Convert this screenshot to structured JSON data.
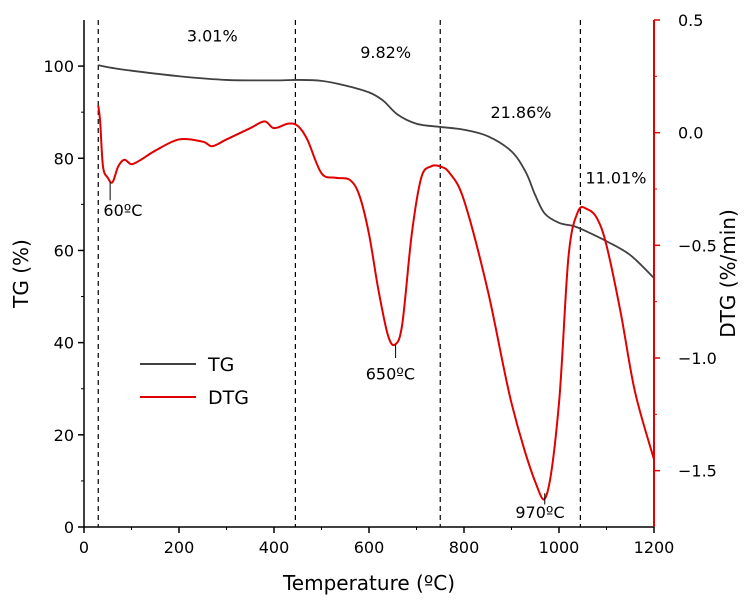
{
  "chart_data": {
    "type": "line",
    "title": "",
    "xlabel": "Temperature (ºC)",
    "ylabel_left": "TG (%)",
    "ylabel_right": "DTG (%/min)",
    "xlim": [
      0,
      1200
    ],
    "ylim_left": [
      0,
      110
    ],
    "ylim_right": [
      -1.75,
      0.5
    ],
    "x_ticks": [
      0,
      200,
      400,
      600,
      800,
      1000,
      1200
    ],
    "x_tick_labels": [
      "0",
      "200",
      "400",
      "600",
      "800",
      "1000",
      "1200"
    ],
    "y_left_ticks": [
      0,
      20,
      40,
      60,
      80,
      100
    ],
    "y_left_tick_labels": [
      "0",
      "20",
      "40",
      "60",
      "80",
      "100"
    ],
    "y_right_ticks": [
      0.5,
      0.0,
      -0.5,
      -1.0,
      -1.5
    ],
    "y_right_tick_labels": [
      "0.5",
      "0.0",
      "−0.5",
      "−1.0",
      "−1.5"
    ],
    "grid": false,
    "legend_position": "bottom-left",
    "colors": {
      "TG": "#404040",
      "DTG": "#e00000",
      "right_axis": "#e00000",
      "text": "#000000"
    },
    "series": [
      {
        "name": "TG",
        "axis": "left",
        "x": [
          30,
          60,
          100,
          200,
          300,
          400,
          450,
          500,
          550,
          600,
          630,
          660,
          700,
          750,
          800,
          850,
          900,
          930,
          950,
          970,
          1000,
          1030,
          1050,
          1100,
          1150,
          1200
        ],
        "y": [
          100.2,
          99.6,
          99.0,
          97.8,
          97.0,
          96.9,
          97.0,
          96.8,
          95.8,
          94.3,
          92.5,
          89.5,
          87.5,
          86.8,
          86.2,
          84.8,
          81.5,
          77.0,
          72.0,
          68.0,
          66.0,
          65.3,
          64.5,
          62.0,
          59.0,
          54.0
        ]
      },
      {
        "name": "DTG",
        "axis": "right",
        "x": [
          30,
          34,
          40,
          50,
          60,
          72,
          85,
          100,
          120,
          150,
          200,
          250,
          270,
          300,
          350,
          380,
          400,
          430,
          450,
          470,
          500,
          530,
          560,
          580,
          600,
          620,
          640,
          655,
          670,
          690,
          710,
          730,
          750,
          770,
          800,
          850,
          900,
          950,
          975,
          1000,
          1020,
          1040,
          1060,
          1080,
          1100,
          1130,
          1160,
          1200
        ],
        "y": [
          0.12,
          0.05,
          -0.15,
          -0.2,
          -0.22,
          -0.15,
          -0.12,
          -0.14,
          -0.12,
          -0.08,
          -0.03,
          -0.04,
          -0.06,
          -0.03,
          0.02,
          0.05,
          0.02,
          0.04,
          0.03,
          -0.03,
          -0.18,
          -0.2,
          -0.21,
          -0.28,
          -0.45,
          -0.7,
          -0.9,
          -0.94,
          -0.85,
          -0.45,
          -0.2,
          -0.15,
          -0.15,
          -0.18,
          -0.3,
          -0.7,
          -1.2,
          -1.55,
          -1.6,
          -1.2,
          -0.55,
          -0.35,
          -0.34,
          -0.38,
          -0.5,
          -0.8,
          -1.15,
          -1.45
        ]
      }
    ],
    "vertical_lines_x": [
      30,
      445,
      750,
      1045
    ],
    "annotations": [
      {
        "text": "3.01%",
        "x": 270,
        "y": 105.3
      },
      {
        "text": "9.82%",
        "x": 635,
        "y": 101.8
      },
      {
        "text": "21.86%",
        "x": 920,
        "y": 88.7
      },
      {
        "text": "11.01%",
        "x": 1120,
        "y": 74.5
      },
      {
        "text": "60ºC",
        "x": 82,
        "y": 67.5
      },
      {
        "text": "650ºC",
        "x": 645,
        "y": 32.0
      },
      {
        "text": "970ºC",
        "x": 960,
        "y": 2.0
      }
    ],
    "peak_markers": [
      {
        "x": 55,
        "y": -0.22,
        "y_end": -0.3
      },
      {
        "x": 656,
        "y": -0.94,
        "y_end": -1.0
      },
      {
        "x": 970,
        "y": -1.6,
        "y_end": -1.65
      }
    ],
    "legend": [
      {
        "label": "TG",
        "color": "#404040"
      },
      {
        "label": "DTG",
        "color": "#e00000"
      }
    ]
  }
}
